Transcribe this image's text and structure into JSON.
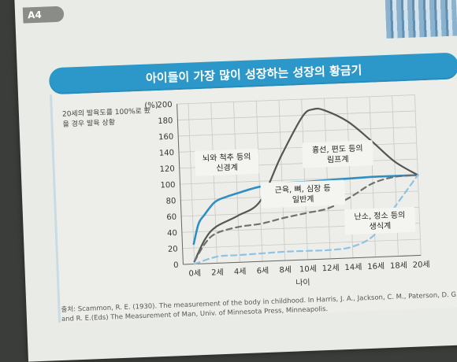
{
  "page": {
    "tab_label": "A4"
  },
  "header": {
    "title": "아이들이 가장 많이 성장하는 성장의 황금기"
  },
  "y_note": "20세의 발육도를 100%로 봤을 경우 발육 상황",
  "source": "출처: Scammon, R. E. (1930). The measurement of the body in childhood. In Harris, J. A., Jackson, C. M., Paterson, D. G. and R. E.(Eds) The Measurement of Man, Univ. of Minnesota Press, Minneapolis.",
  "colors": {
    "banner": "#2c97c9",
    "neural": "#2f8fc4",
    "lymphoid": "#555555",
    "general": "#6f6f6f",
    "reproductive": "#8fc3e3"
  },
  "chart_data": {
    "type": "line",
    "title": "",
    "xlabel": "나이",
    "ylabel": "",
    "y_unit": "(%)",
    "ylim": [
      0,
      200
    ],
    "xlim": [
      -1,
      20
    ],
    "y_ticks": [
      0,
      20,
      40,
      60,
      80,
      100,
      120,
      140,
      160,
      180,
      200
    ],
    "x_ticks": [
      0,
      2,
      4,
      6,
      8,
      10,
      12,
      14,
      16,
      18,
      20
    ],
    "x_tick_labels": [
      "0세",
      "2세",
      "4세",
      "6세",
      "8세",
      "10세",
      "12세",
      "14세",
      "16세",
      "18세",
      "20세"
    ],
    "grid": true,
    "series": [
      {
        "name": "뇌와 척추 등의 신경계",
        "color_key": "neural",
        "style": "solid",
        "x": [
          0,
          0.5,
          1,
          2,
          3,
          4,
          6,
          8,
          10,
          12,
          14,
          16,
          18,
          20
        ],
        "y": [
          25,
          50,
          60,
          76,
          82,
          86,
          93,
          96,
          97,
          98,
          99,
          100,
          100,
          100
        ]
      },
      {
        "name": "흉선, 편도 등의 림프계",
        "color_key": "lymphoid",
        "style": "solid",
        "x": [
          0,
          1,
          2,
          4,
          6,
          8,
          10,
          11,
          12,
          14,
          16,
          18,
          20
        ],
        "y": [
          3,
          30,
          45,
          58,
          75,
          130,
          178,
          187,
          185,
          170,
          145,
          118,
          100
        ]
      },
      {
        "name": "근육, 뼈, 심장 등 일반계",
        "color_key": "general",
        "style": "dashed",
        "x": [
          0,
          1,
          2,
          4,
          6,
          8,
          10,
          12,
          14,
          16,
          18,
          20
        ],
        "y": [
          3,
          25,
          37,
          44,
          47,
          53,
          58,
          63,
          76,
          92,
          99,
          100
        ]
      },
      {
        "name": "난소, 정소 등의 생식계",
        "color_key": "reproductive",
        "style": "dashed",
        "x": [
          0,
          2,
          4,
          6,
          8,
          10,
          12,
          14,
          16,
          18,
          20
        ],
        "y": [
          0,
          8,
          9,
          10,
          11,
          11,
          11,
          14,
          28,
          64,
          100
        ]
      }
    ],
    "annotations": [
      {
        "lines": [
          "뇌와 척추 등의",
          "신경계"
        ],
        "x": 3.2,
        "y": 125
      },
      {
        "lines": [
          "흉선, 편도 등의",
          "림프계"
        ],
        "x": 13.0,
        "y": 130
      },
      {
        "lines": [
          "근육, 뼈, 심장 등",
          "일반계"
        ],
        "x": 9.8,
        "y": 82
      },
      {
        "lines": [
          "난소, 정소 등의",
          "생식계"
        ],
        "x": 16.5,
        "y": 45
      }
    ]
  }
}
